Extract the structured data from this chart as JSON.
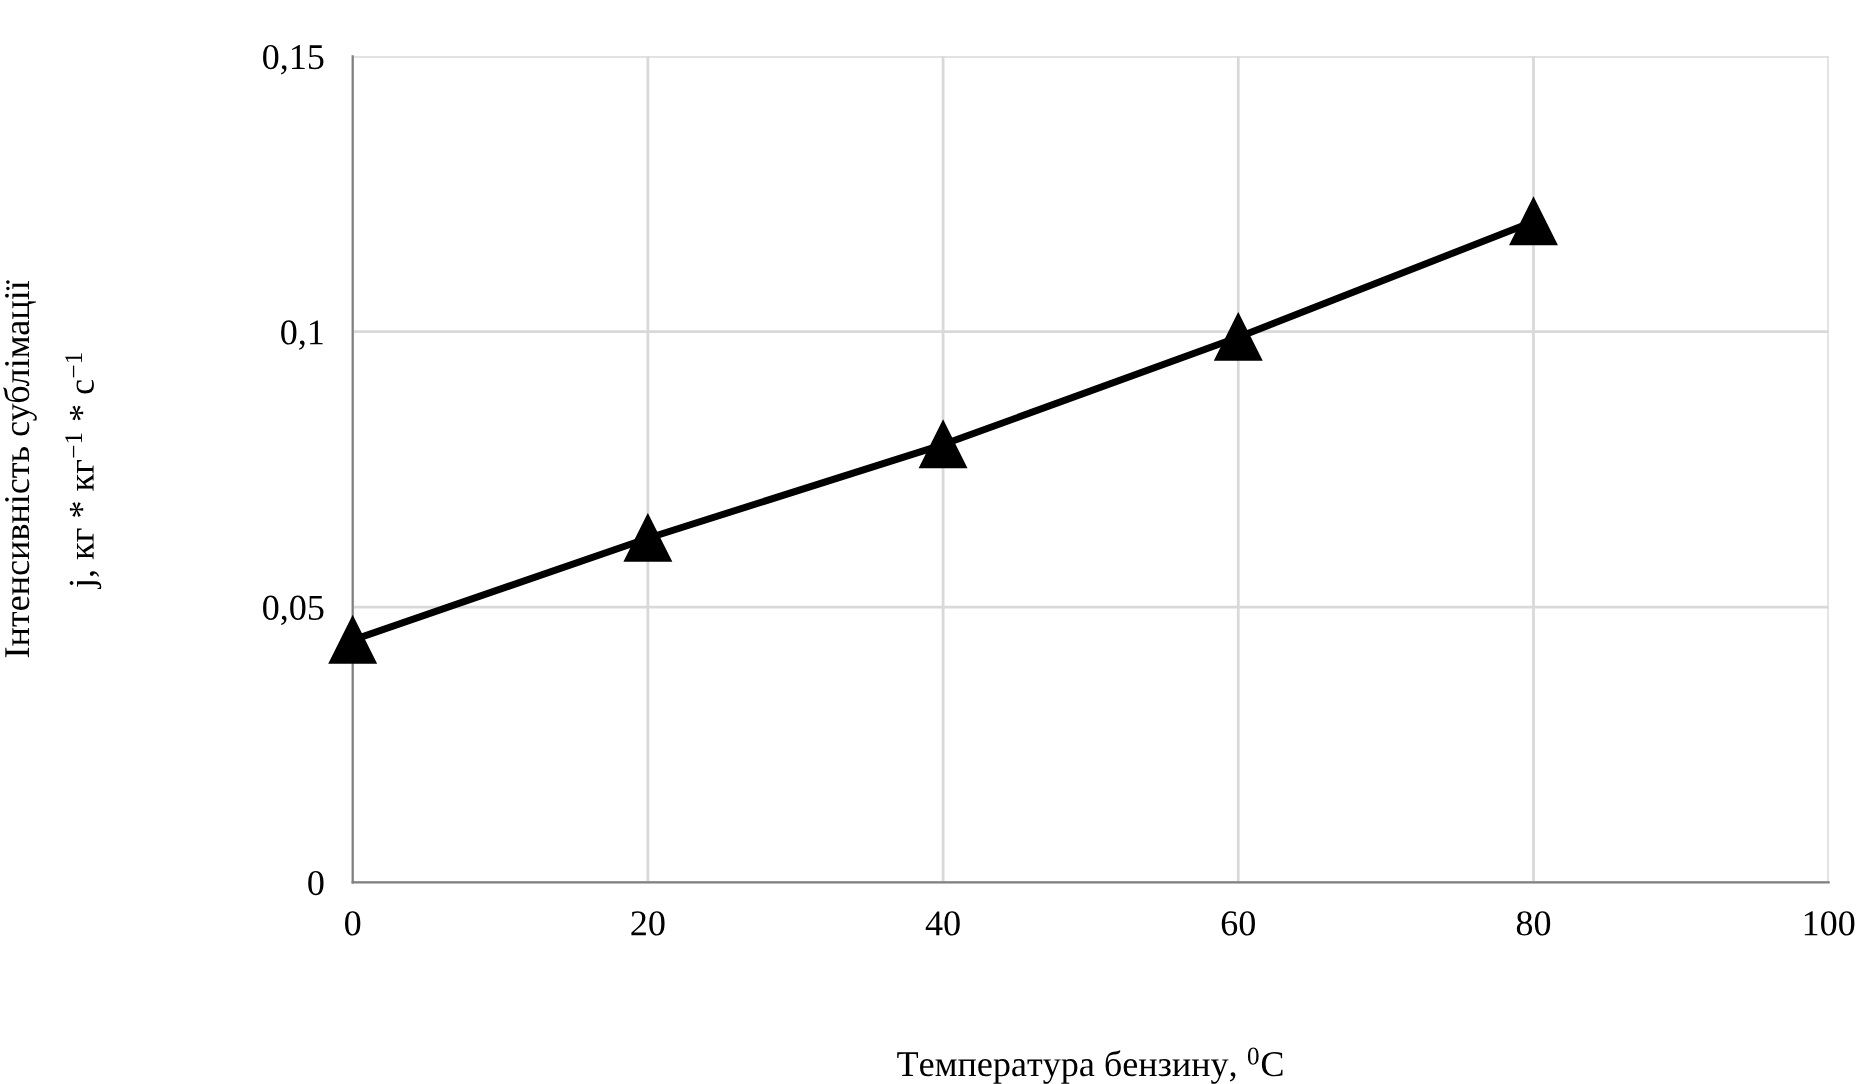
{
  "chart_data": {
    "type": "line",
    "xlabel": "Температура бензину, $^{0}$C",
    "ylabel": "Інтенсивність сублімації\nj, кг * кг$^{−1}$ * с$^{−1}$",
    "x": [
      0,
      20,
      40,
      60,
      80
    ],
    "series": [
      {
        "color": "#000000",
        "values": [
          0.044,
          0.0625,
          0.0795,
          0.099,
          0.12
        ]
      }
    ],
    "marker": "triangle",
    "line_style": "solid",
    "xlim": [
      0,
      100
    ],
    "xticks": [
      0,
      20,
      40,
      60,
      80,
      100
    ],
    "ylim": [
      0,
      0.15
    ],
    "yticks": [
      {
        "value": 0,
        "label": "0"
      },
      {
        "value": 0.05,
        "label": "0,05"
      },
      {
        "value": 0.1,
        "label": "0,1"
      },
      {
        "value": 0.15,
        "label": "0,15"
      }
    ],
    "grid": true
  }
}
